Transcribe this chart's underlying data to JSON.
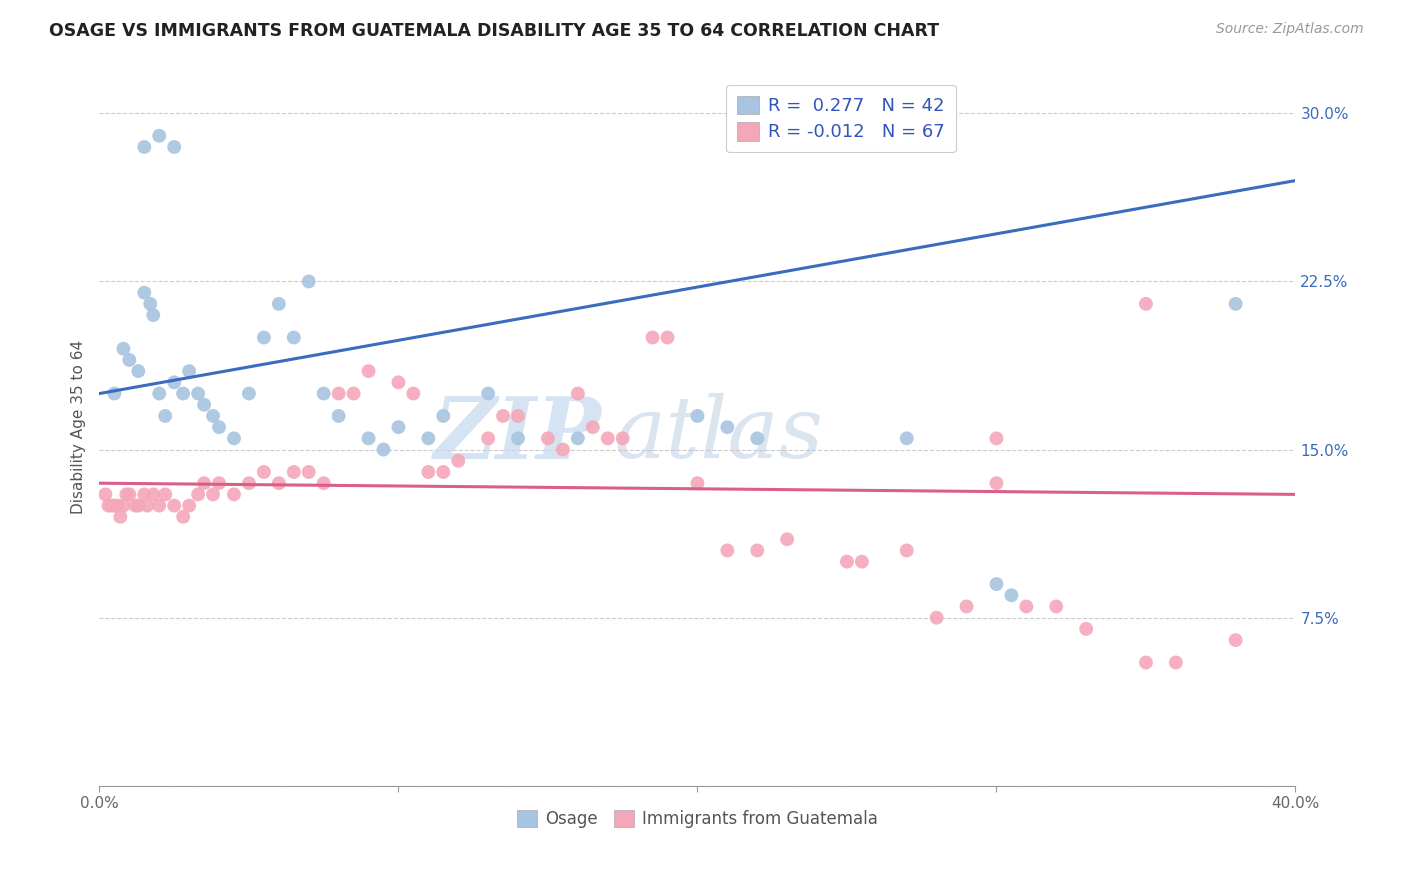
{
  "title": "OSAGE VS IMMIGRANTS FROM GUATEMALA DISABILITY AGE 35 TO 64 CORRELATION CHART",
  "source": "Source: ZipAtlas.com",
  "ylabel": "Disability Age 35 to 64",
  "xlim": [
    0.0,
    0.4
  ],
  "ylim": [
    0.0,
    0.32
  ],
  "xticks": [
    0.0,
    0.1,
    0.2,
    0.3,
    0.4
  ],
  "xticklabels": [
    "0.0%",
    "",
    "",
    "",
    "40.0%"
  ],
  "yticks": [
    0.0,
    0.075,
    0.15,
    0.225,
    0.3
  ],
  "yticklabels_right": [
    "",
    "7.5%",
    "15.0%",
    "22.5%",
    "30.0%"
  ],
  "blue_scatter_x": [
    0.005,
    0.008,
    0.01,
    0.013,
    0.015,
    0.017,
    0.018,
    0.02,
    0.022,
    0.025,
    0.028,
    0.03,
    0.033,
    0.035,
    0.038,
    0.04,
    0.045,
    0.05,
    0.055,
    0.06,
    0.065,
    0.07,
    0.075,
    0.08,
    0.09,
    0.095,
    0.1,
    0.11,
    0.115,
    0.13,
    0.14,
    0.16,
    0.2,
    0.21,
    0.22,
    0.27,
    0.3,
    0.305,
    0.015,
    0.02,
    0.025,
    0.38
  ],
  "blue_scatter_y": [
    0.175,
    0.195,
    0.19,
    0.185,
    0.22,
    0.215,
    0.21,
    0.175,
    0.165,
    0.18,
    0.175,
    0.185,
    0.175,
    0.17,
    0.165,
    0.16,
    0.155,
    0.175,
    0.2,
    0.215,
    0.2,
    0.225,
    0.175,
    0.165,
    0.155,
    0.15,
    0.16,
    0.155,
    0.165,
    0.175,
    0.155,
    0.155,
    0.165,
    0.16,
    0.155,
    0.155,
    0.09,
    0.085,
    0.285,
    0.29,
    0.285,
    0.215
  ],
  "pink_scatter_x": [
    0.002,
    0.003,
    0.004,
    0.005,
    0.006,
    0.007,
    0.008,
    0.009,
    0.01,
    0.012,
    0.013,
    0.015,
    0.016,
    0.018,
    0.02,
    0.022,
    0.025,
    0.028,
    0.03,
    0.033,
    0.035,
    0.038,
    0.04,
    0.045,
    0.05,
    0.055,
    0.06,
    0.065,
    0.07,
    0.075,
    0.08,
    0.085,
    0.09,
    0.1,
    0.105,
    0.11,
    0.115,
    0.12,
    0.13,
    0.135,
    0.14,
    0.15,
    0.155,
    0.16,
    0.165,
    0.17,
    0.175,
    0.185,
    0.19,
    0.2,
    0.21,
    0.22,
    0.23,
    0.25,
    0.255,
    0.27,
    0.28,
    0.29,
    0.3,
    0.31,
    0.32,
    0.33,
    0.35,
    0.36,
    0.38,
    0.3,
    0.35
  ],
  "pink_scatter_y": [
    0.13,
    0.125,
    0.125,
    0.125,
    0.125,
    0.12,
    0.125,
    0.13,
    0.13,
    0.125,
    0.125,
    0.13,
    0.125,
    0.13,
    0.125,
    0.13,
    0.125,
    0.12,
    0.125,
    0.13,
    0.135,
    0.13,
    0.135,
    0.13,
    0.135,
    0.14,
    0.135,
    0.14,
    0.14,
    0.135,
    0.175,
    0.175,
    0.185,
    0.18,
    0.175,
    0.14,
    0.14,
    0.145,
    0.155,
    0.165,
    0.165,
    0.155,
    0.15,
    0.175,
    0.16,
    0.155,
    0.155,
    0.2,
    0.2,
    0.135,
    0.105,
    0.105,
    0.11,
    0.1,
    0.1,
    0.105,
    0.075,
    0.08,
    0.135,
    0.08,
    0.08,
    0.07,
    0.055,
    0.055,
    0.065,
    0.155,
    0.215
  ],
  "blue_line_x": [
    0.0,
    0.4
  ],
  "blue_line_y": [
    0.175,
    0.27
  ],
  "pink_line_x": [
    0.0,
    0.4
  ],
  "pink_line_y": [
    0.135,
    0.13
  ],
  "blue_color": "#a8c4e0",
  "pink_color": "#f4a7b9",
  "blue_line_color": "#3a6bbf",
  "pink_line_color": "#d95f8a",
  "watermark_zip": "ZIP",
  "watermark_atlas": "atlas",
  "background_color": "#ffffff",
  "grid_color": "#cccccc",
  "legend_label1": "R =  0.277   N = 42",
  "legend_label2": "R = -0.012   N = 67",
  "bottom_legend1": "Osage",
  "bottom_legend2": "Immigrants from Guatemala"
}
